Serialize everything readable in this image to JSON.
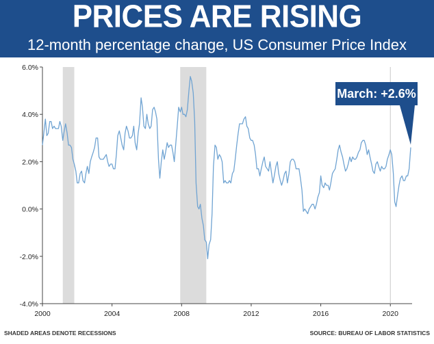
{
  "header": {
    "title": "PRICES ARE RISING",
    "subtitle": "12-month percentage change, US Consumer Price Index"
  },
  "footer": {
    "left": "SHADED AREAS DENOTE RECESSIONS",
    "right": "SOURCE: BUREAU OF LABOR STATISTICS"
  },
  "colors": {
    "header_bg": "#1e4e8c",
    "line": "#6fa3d2",
    "recession": "#dcdcdc",
    "callout": "#1e4e8c"
  },
  "chart_data": {
    "type": "line",
    "title": "PRICES ARE RISING",
    "subtitle": "12-month percentage change, US Consumer Price Index",
    "xlabel": "",
    "ylabel": "",
    "xlim": [
      2000,
      2021.25
    ],
    "ylim": [
      -4.0,
      6.0
    ],
    "x_ticks": [
      2000,
      2004,
      2008,
      2012,
      2016,
      2020
    ],
    "x_tick_labels": [
      "2000",
      "2004",
      "2008",
      "2012",
      "2016",
      "2020"
    ],
    "y_ticks": [
      -4,
      -2,
      0,
      2,
      4,
      6
    ],
    "y_tick_labels": [
      "-4.0%",
      "-2.0%",
      "0.0%",
      "2.0%",
      "4.0%",
      "6.0%"
    ],
    "grid": false,
    "recessions": [
      [
        2001.17,
        2001.83
      ],
      [
        2007.92,
        2009.42
      ]
    ],
    "annotation": {
      "text": "March: +2.6%",
      "x": 2021.17,
      "y": 2.6
    },
    "series": [
      {
        "name": "CPI 12-month % change",
        "points": [
          [
            2000.0,
            2.7
          ],
          [
            2000.08,
            3.2
          ],
          [
            2000.17,
            3.8
          ],
          [
            2000.25,
            3.1
          ],
          [
            2000.33,
            3.2
          ],
          [
            2000.42,
            3.7
          ],
          [
            2000.5,
            3.7
          ],
          [
            2000.58,
            3.4
          ],
          [
            2000.67,
            3.5
          ],
          [
            2000.75,
            3.4
          ],
          [
            2000.83,
            3.4
          ],
          [
            2000.92,
            3.4
          ],
          [
            2001.0,
            3.7
          ],
          [
            2001.08,
            3.5
          ],
          [
            2001.17,
            2.9
          ],
          [
            2001.25,
            3.3
          ],
          [
            2001.33,
            3.6
          ],
          [
            2001.42,
            3.2
          ],
          [
            2001.5,
            2.7
          ],
          [
            2001.58,
            2.7
          ],
          [
            2001.67,
            2.6
          ],
          [
            2001.75,
            2.1
          ],
          [
            2001.83,
            1.9
          ],
          [
            2001.92,
            1.6
          ],
          [
            2002.0,
            1.1
          ],
          [
            2002.08,
            1.1
          ],
          [
            2002.17,
            1.5
          ],
          [
            2002.25,
            1.6
          ],
          [
            2002.33,
            1.2
          ],
          [
            2002.42,
            1.1
          ],
          [
            2002.5,
            1.5
          ],
          [
            2002.58,
            1.8
          ],
          [
            2002.67,
            1.5
          ],
          [
            2002.75,
            2.0
          ],
          [
            2002.83,
            2.2
          ],
          [
            2002.92,
            2.4
          ],
          [
            2003.0,
            2.6
          ],
          [
            2003.08,
            3.0
          ],
          [
            2003.17,
            3.0
          ],
          [
            2003.25,
            2.2
          ],
          [
            2003.33,
            2.1
          ],
          [
            2003.42,
            2.1
          ],
          [
            2003.5,
            2.1
          ],
          [
            2003.58,
            2.2
          ],
          [
            2003.67,
            2.3
          ],
          [
            2003.75,
            2.0
          ],
          [
            2003.83,
            1.8
          ],
          [
            2003.92,
            1.9
          ],
          [
            2004.0,
            1.9
          ],
          [
            2004.08,
            1.7
          ],
          [
            2004.17,
            1.7
          ],
          [
            2004.25,
            2.3
          ],
          [
            2004.33,
            3.1
          ],
          [
            2004.42,
            3.3
          ],
          [
            2004.5,
            3.0
          ],
          [
            2004.58,
            2.7
          ],
          [
            2004.67,
            2.5
          ],
          [
            2004.75,
            3.2
          ],
          [
            2004.83,
            3.5
          ],
          [
            2004.92,
            3.3
          ],
          [
            2005.0,
            3.0
          ],
          [
            2005.08,
            3.0
          ],
          [
            2005.17,
            3.1
          ],
          [
            2005.25,
            3.5
          ],
          [
            2005.33,
            2.8
          ],
          [
            2005.42,
            2.5
          ],
          [
            2005.5,
            3.2
          ],
          [
            2005.58,
            3.6
          ],
          [
            2005.67,
            4.7
          ],
          [
            2005.75,
            4.3
          ],
          [
            2005.83,
            3.5
          ],
          [
            2005.92,
            3.4
          ],
          [
            2006.0,
            4.0
          ],
          [
            2006.08,
            3.6
          ],
          [
            2006.17,
            3.4
          ],
          [
            2006.25,
            3.5
          ],
          [
            2006.33,
            4.2
          ],
          [
            2006.42,
            4.3
          ],
          [
            2006.5,
            4.1
          ],
          [
            2006.58,
            3.8
          ],
          [
            2006.67,
            2.1
          ],
          [
            2006.75,
            1.3
          ],
          [
            2006.83,
            2.0
          ],
          [
            2006.92,
            2.5
          ],
          [
            2007.0,
            2.1
          ],
          [
            2007.08,
            2.4
          ],
          [
            2007.17,
            2.8
          ],
          [
            2007.25,
            2.6
          ],
          [
            2007.33,
            2.7
          ],
          [
            2007.42,
            2.7
          ],
          [
            2007.5,
            2.4
          ],
          [
            2007.58,
            2.0
          ],
          [
            2007.67,
            2.8
          ],
          [
            2007.75,
            3.5
          ],
          [
            2007.83,
            4.3
          ],
          [
            2007.92,
            4.1
          ],
          [
            2008.0,
            4.3
          ],
          [
            2008.08,
            4.0
          ],
          [
            2008.17,
            4.0
          ],
          [
            2008.25,
            3.9
          ],
          [
            2008.33,
            4.2
          ],
          [
            2008.42,
            5.0
          ],
          [
            2008.5,
            5.6
          ],
          [
            2008.58,
            5.4
          ],
          [
            2008.67,
            4.9
          ],
          [
            2008.75,
            3.7
          ],
          [
            2008.83,
            1.1
          ],
          [
            2008.92,
            0.1
          ],
          [
            2009.0,
            0.0
          ],
          [
            2009.08,
            0.2
          ],
          [
            2009.17,
            -0.4
          ],
          [
            2009.25,
            -0.7
          ],
          [
            2009.33,
            -1.3
          ],
          [
            2009.42,
            -1.4
          ],
          [
            2009.5,
            -2.1
          ],
          [
            2009.58,
            -1.5
          ],
          [
            2009.67,
            -1.3
          ],
          [
            2009.75,
            -0.2
          ],
          [
            2009.83,
            1.8
          ],
          [
            2009.92,
            2.7
          ],
          [
            2010.0,
            2.6
          ],
          [
            2010.08,
            2.1
          ],
          [
            2010.17,
            2.3
          ],
          [
            2010.25,
            2.2
          ],
          [
            2010.33,
            2.0
          ],
          [
            2010.42,
            1.1
          ],
          [
            2010.5,
            1.2
          ],
          [
            2010.58,
            1.1
          ],
          [
            2010.67,
            1.1
          ],
          [
            2010.75,
            1.2
          ],
          [
            2010.83,
            1.1
          ],
          [
            2010.92,
            1.5
          ],
          [
            2011.0,
            1.6
          ],
          [
            2011.08,
            2.1
          ],
          [
            2011.17,
            2.7
          ],
          [
            2011.25,
            3.2
          ],
          [
            2011.33,
            3.6
          ],
          [
            2011.42,
            3.6
          ],
          [
            2011.5,
            3.6
          ],
          [
            2011.58,
            3.8
          ],
          [
            2011.67,
            3.9
          ],
          [
            2011.75,
            3.5
          ],
          [
            2011.83,
            3.4
          ],
          [
            2011.92,
            3.0
          ],
          [
            2012.0,
            2.9
          ],
          [
            2012.08,
            2.9
          ],
          [
            2012.17,
            2.7
          ],
          [
            2012.25,
            2.3
          ],
          [
            2012.33,
            1.7
          ],
          [
            2012.42,
            1.7
          ],
          [
            2012.5,
            1.4
          ],
          [
            2012.58,
            1.7
          ],
          [
            2012.67,
            2.0
          ],
          [
            2012.75,
            2.2
          ],
          [
            2012.83,
            1.8
          ],
          [
            2012.92,
            1.7
          ],
          [
            2013.0,
            1.6
          ],
          [
            2013.08,
            2.0
          ],
          [
            2013.17,
            1.5
          ],
          [
            2013.25,
            1.1
          ],
          [
            2013.33,
            1.4
          ],
          [
            2013.42,
            1.8
          ],
          [
            2013.5,
            2.0
          ],
          [
            2013.58,
            1.5
          ],
          [
            2013.67,
            1.2
          ],
          [
            2013.75,
            1.0
          ],
          [
            2013.83,
            1.2
          ],
          [
            2013.92,
            1.5
          ],
          [
            2014.0,
            1.6
          ],
          [
            2014.08,
            1.1
          ],
          [
            2014.17,
            1.5
          ],
          [
            2014.25,
            2.0
          ],
          [
            2014.33,
            2.1
          ],
          [
            2014.42,
            2.1
          ],
          [
            2014.5,
            2.0
          ],
          [
            2014.58,
            1.7
          ],
          [
            2014.67,
            1.7
          ],
          [
            2014.75,
            1.7
          ],
          [
            2014.83,
            1.3
          ],
          [
            2014.92,
            0.8
          ],
          [
            2015.0,
            -0.1
          ],
          [
            2015.08,
            0.0
          ],
          [
            2015.17,
            -0.1
          ],
          [
            2015.25,
            -0.2
          ],
          [
            2015.33,
            0.0
          ],
          [
            2015.42,
            0.1
          ],
          [
            2015.5,
            0.2
          ],
          [
            2015.58,
            0.2
          ],
          [
            2015.67,
            0.0
          ],
          [
            2015.75,
            0.2
          ],
          [
            2015.83,
            0.5
          ],
          [
            2015.92,
            0.7
          ],
          [
            2016.0,
            1.4
          ],
          [
            2016.08,
            1.0
          ],
          [
            2016.17,
            0.9
          ],
          [
            2016.25,
            1.1
          ],
          [
            2016.33,
            1.0
          ],
          [
            2016.42,
            1.0
          ],
          [
            2016.5,
            0.8
          ],
          [
            2016.58,
            1.1
          ],
          [
            2016.67,
            1.5
          ],
          [
            2016.75,
            1.6
          ],
          [
            2016.83,
            1.7
          ],
          [
            2016.92,
            2.1
          ],
          [
            2017.0,
            2.5
          ],
          [
            2017.08,
            2.7
          ],
          [
            2017.17,
            2.4
          ],
          [
            2017.25,
            2.2
          ],
          [
            2017.33,
            1.9
          ],
          [
            2017.42,
            1.6
          ],
          [
            2017.5,
            1.7
          ],
          [
            2017.58,
            1.9
          ],
          [
            2017.67,
            2.2
          ],
          [
            2017.75,
            2.0
          ],
          [
            2017.83,
            2.2
          ],
          [
            2017.92,
            2.1
          ],
          [
            2018.0,
            2.1
          ],
          [
            2018.08,
            2.2
          ],
          [
            2018.17,
            2.4
          ],
          [
            2018.25,
            2.5
          ],
          [
            2018.33,
            2.8
          ],
          [
            2018.42,
            2.9
          ],
          [
            2018.5,
            2.9
          ],
          [
            2018.58,
            2.7
          ],
          [
            2018.67,
            2.3
          ],
          [
            2018.75,
            2.5
          ],
          [
            2018.83,
            2.2
          ],
          [
            2018.92,
            1.9
          ],
          [
            2019.0,
            1.6
          ],
          [
            2019.08,
            1.5
          ],
          [
            2019.17,
            1.9
          ],
          [
            2019.25,
            2.0
          ],
          [
            2019.33,
            1.8
          ],
          [
            2019.42,
            1.6
          ],
          [
            2019.5,
            1.8
          ],
          [
            2019.58,
            1.7
          ],
          [
            2019.67,
            1.7
          ],
          [
            2019.75,
            1.8
          ],
          [
            2019.83,
            2.1
          ],
          [
            2019.92,
            2.3
          ],
          [
            2020.0,
            2.5
          ],
          [
            2020.08,
            2.3
          ],
          [
            2020.17,
            1.5
          ],
          [
            2020.25,
            0.3
          ],
          [
            2020.33,
            0.1
          ],
          [
            2020.42,
            0.6
          ],
          [
            2020.5,
            1.0
          ],
          [
            2020.58,
            1.3
          ],
          [
            2020.67,
            1.4
          ],
          [
            2020.75,
            1.2
          ],
          [
            2020.83,
            1.2
          ],
          [
            2020.92,
            1.4
          ],
          [
            2021.0,
            1.4
          ],
          [
            2021.08,
            1.7
          ],
          [
            2021.17,
            2.6
          ]
        ]
      }
    ]
  }
}
